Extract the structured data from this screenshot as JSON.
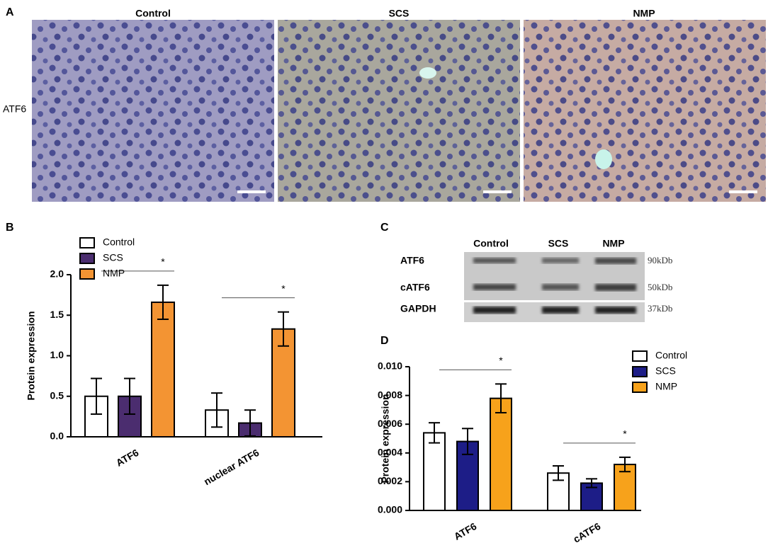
{
  "panel_labels": [
    "A",
    "B",
    "C",
    "D"
  ],
  "micrographs": {
    "titles": [
      "Control",
      "SCS",
      "NMP"
    ],
    "row_label": "ATF6"
  },
  "western_blot": {
    "lanes": [
      "Control",
      "SCS",
      "NMP"
    ],
    "rows": [
      "ATF6",
      "cATF6",
      "GAPDH"
    ],
    "sizes": [
      "90kDb",
      "50kDb",
      "37kDb"
    ]
  },
  "chart_data": [
    {
      "type": "bar",
      "ylabel": "Protein expression",
      "categories": [
        "ATF6",
        "nuclear ATF6"
      ],
      "series": [
        {
          "name": "Control",
          "color": "#ffffff",
          "values": [
            0.5,
            0.33
          ],
          "errors": [
            0.22,
            0.21
          ]
        },
        {
          "name": "SCS",
          "color": "#4b2d6f",
          "values": [
            0.5,
            0.17
          ],
          "errors": [
            0.22,
            0.16
          ]
        },
        {
          "name": "NMP",
          "color": "#f39433",
          "values": [
            1.66,
            1.33
          ],
          "errors": [
            0.21,
            0.21
          ]
        }
      ],
      "annotations": [
        "*",
        "*"
      ],
      "ylim": [
        0,
        2
      ],
      "yticks": [
        {
          "value": 0,
          "label": "0.0"
        },
        0.5,
        {
          "value": 1,
          "label": "1.0"
        },
        1.5,
        {
          "value": 2,
          "label": "2.0"
        }
      ],
      "legend": "upper left"
    },
    {
      "type": "bar",
      "ylabel": "Protein expression",
      "categories": [
        "ATF6",
        "cATF6"
      ],
      "series": [
        {
          "name": "Control",
          "color": "#ffffff",
          "values": [
            0.0054,
            0.0026
          ],
          "errors": [
            0.0007,
            0.0005
          ]
        },
        {
          "name": "SCS",
          "color": "#1d1d87",
          "values": [
            0.0048,
            0.0019
          ],
          "errors": [
            0.0009,
            0.0003
          ]
        },
        {
          "name": "NMP",
          "color": "#f7a21b",
          "values": [
            0.0078,
            0.0032
          ],
          "errors": [
            0.001,
            0.0005
          ]
        }
      ],
      "annotations": [
        "*",
        "*"
      ],
      "ylim": [
        0,
        0.01
      ],
      "yticks": [
        {
          "value": 0,
          "label": "0.000"
        },
        {
          "value": 0.002,
          "label": "0.002"
        },
        {
          "value": 0.004,
          "label": "0.004"
        },
        {
          "value": 0.006,
          "label": "0.006"
        },
        {
          "value": 0.008,
          "label": "0.008"
        },
        {
          "value": 0.01,
          "label": "0.010"
        }
      ],
      "legend": "upper right"
    }
  ]
}
